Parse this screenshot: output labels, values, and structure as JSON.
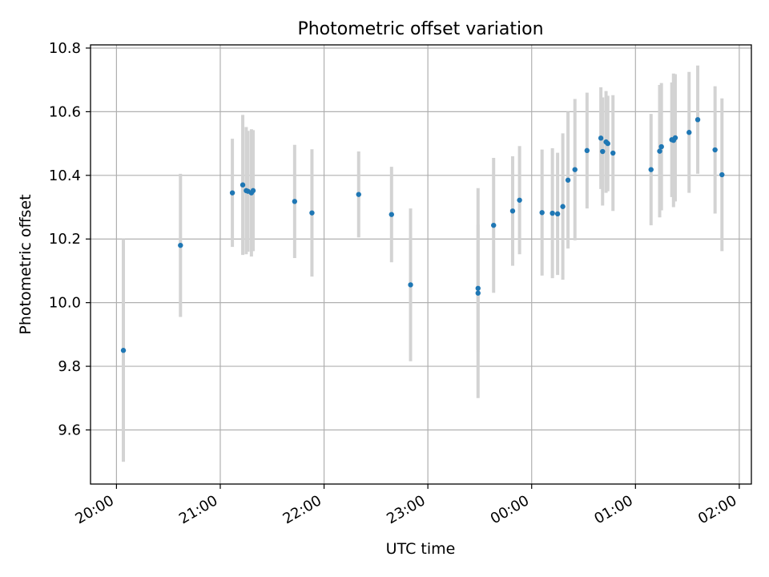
{
  "chart_data": {
    "type": "scatter",
    "title": "Photometric offset variation",
    "xlabel": "UTC time",
    "ylabel": "Photometric offset",
    "x_is_time": true,
    "xlim": [
      "19:45",
      "02:07"
    ],
    "ylim": [
      9.43,
      10.81
    ],
    "x_ticks": [
      "20:00",
      "21:00",
      "22:00",
      "23:00",
      "00:00",
      "01:00",
      "02:00"
    ],
    "y_ticks": [
      "9.6",
      "9.8",
      "10.0",
      "10.2",
      "10.4",
      "10.6",
      "10.8"
    ],
    "grid": true,
    "colors": {
      "marker": "#1f77b4",
      "errorbar": "#d3d3d3",
      "grid": "#b0b0b0"
    },
    "points": [
      {
        "x": "20:04",
        "y": 9.85,
        "yerr": 0.35
      },
      {
        "x": "20:37",
        "y": 10.18,
        "yerr": 0.225
      },
      {
        "x": "21:07",
        "y": 10.345,
        "yerr": 0.17
      },
      {
        "x": "21:13",
        "y": 10.37,
        "yerr": 0.22
      },
      {
        "x": "21:15",
        "y": 10.352,
        "yerr": 0.2
      },
      {
        "x": "21:16",
        "y": 10.35,
        "yerr": 0.19
      },
      {
        "x": "21:18",
        "y": 10.345,
        "yerr": 0.2
      },
      {
        "x": "21:19",
        "y": 10.352,
        "yerr": 0.19
      },
      {
        "x": "21:43",
        "y": 10.318,
        "yerr": 0.178
      },
      {
        "x": "21:53",
        "y": 10.282,
        "yerr": 0.2
      },
      {
        "x": "22:20",
        "y": 10.34,
        "yerr": 0.135
      },
      {
        "x": "22:39",
        "y": 10.277,
        "yerr": 0.15
      },
      {
        "x": "22:50",
        "y": 10.056,
        "yerr": 0.24
      },
      {
        "x": "23:29",
        "y": 10.045,
        "yerr": 0.2
      },
      {
        "x": "23:29",
        "y": 10.03,
        "yerr": 0.33
      },
      {
        "x": "23:38",
        "y": 10.243,
        "yerr": 0.212
      },
      {
        "x": "23:49",
        "y": 10.288,
        "yerr": 0.172
      },
      {
        "x": "23:53",
        "y": 10.322,
        "yerr": 0.17
      },
      {
        "x": "00:06",
        "y": 10.283,
        "yerr": 0.198
      },
      {
        "x": "00:12",
        "y": 10.281,
        "yerr": 0.204
      },
      {
        "x": "00:15",
        "y": 10.279,
        "yerr": 0.192
      },
      {
        "x": "00:18",
        "y": 10.302,
        "yerr": 0.23
      },
      {
        "x": "00:21",
        "y": 10.385,
        "yerr": 0.215
      },
      {
        "x": "00:25",
        "y": 10.418,
        "yerr": 0.222
      },
      {
        "x": "00:32",
        "y": 10.478,
        "yerr": 0.182
      },
      {
        "x": "00:40",
        "y": 10.517,
        "yerr": 0.16
      },
      {
        "x": "00:41",
        "y": 10.475,
        "yerr": 0.17
      },
      {
        "x": "00:43",
        "y": 10.505,
        "yerr": 0.16
      },
      {
        "x": "00:44",
        "y": 10.5,
        "yerr": 0.15
      },
      {
        "x": "00:47",
        "y": 10.47,
        "yerr": 0.182
      },
      {
        "x": "01:09",
        "y": 10.418,
        "yerr": 0.175
      },
      {
        "x": "01:14",
        "y": 10.476,
        "yerr": 0.208
      },
      {
        "x": "01:15",
        "y": 10.49,
        "yerr": 0.2
      },
      {
        "x": "01:21",
        "y": 10.512,
        "yerr": 0.18
      },
      {
        "x": "01:22",
        "y": 10.51,
        "yerr": 0.21
      },
      {
        "x": "01:23",
        "y": 10.518,
        "yerr": 0.2
      },
      {
        "x": "01:31",
        "y": 10.535,
        "yerr": 0.19
      },
      {
        "x": "01:36",
        "y": 10.575,
        "yerr": 0.17
      },
      {
        "x": "01:46",
        "y": 10.48,
        "yerr": 0.2
      },
      {
        "x": "01:50",
        "y": 10.402,
        "yerr": 0.24
      }
    ]
  }
}
